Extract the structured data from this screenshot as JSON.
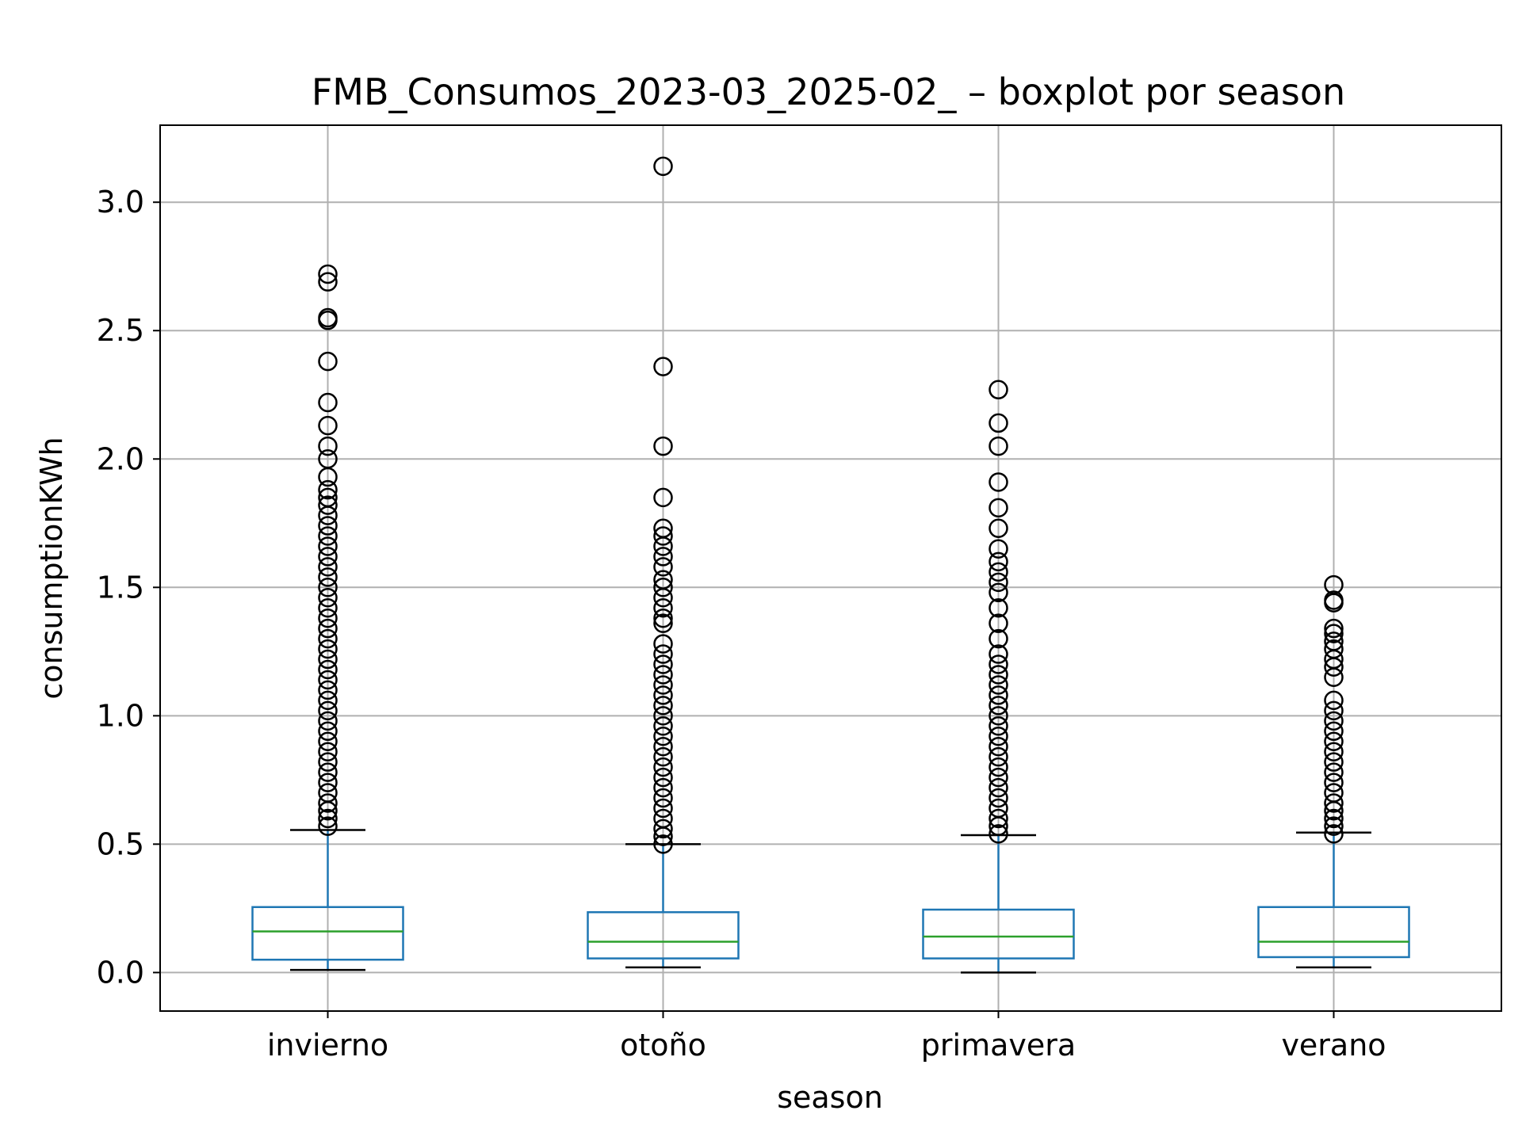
{
  "chart_data": {
    "type": "boxplot",
    "title": "FMB_Consumos_2023-03_2025-02_ – boxplot por season",
    "xlabel": "season",
    "ylabel": "consumptionKWh",
    "categories": [
      "invierno",
      "otoño",
      "primavera",
      "verano"
    ],
    "ylim": [
      -0.15,
      3.3
    ],
    "yticks": [
      0.0,
      0.5,
      1.0,
      1.5,
      2.0,
      2.5,
      3.0
    ],
    "ytick_labels": [
      "0.0",
      "0.5",
      "1.0",
      "1.5",
      "2.0",
      "2.5",
      "3.0"
    ],
    "grid": true,
    "boxes": [
      {
        "category": "invierno",
        "whisker_low": 0.01,
        "q1": 0.05,
        "median": 0.16,
        "q3": 0.255,
        "whisker_high": 0.555,
        "outliers": [
          0.57,
          0.6,
          0.63,
          0.66,
          0.7,
          0.74,
          0.78,
          0.82,
          0.86,
          0.9,
          0.94,
          0.98,
          1.02,
          1.06,
          1.1,
          1.14,
          1.18,
          1.22,
          1.26,
          1.3,
          1.34,
          1.38,
          1.42,
          1.46,
          1.5,
          1.54,
          1.58,
          1.62,
          1.66,
          1.7,
          1.74,
          1.78,
          1.82,
          1.85,
          1.88,
          1.93,
          2.0,
          2.05,
          2.13,
          2.22,
          2.38,
          2.54,
          2.55,
          2.69,
          2.72
        ]
      },
      {
        "category": "otoño",
        "whisker_low": 0.02,
        "q1": 0.055,
        "median": 0.12,
        "q3": 0.235,
        "whisker_high": 0.5,
        "outliers": [
          0.5,
          0.53,
          0.56,
          0.6,
          0.64,
          0.68,
          0.72,
          0.76,
          0.8,
          0.84,
          0.88,
          0.92,
          0.96,
          1.0,
          1.04,
          1.08,
          1.12,
          1.16,
          1.2,
          1.24,
          1.28,
          1.36,
          1.38,
          1.42,
          1.46,
          1.5,
          1.53,
          1.58,
          1.62,
          1.66,
          1.7,
          1.73,
          1.85,
          2.05,
          2.36,
          3.14
        ]
      },
      {
        "category": "primavera",
        "whisker_low": 0.0,
        "q1": 0.055,
        "median": 0.14,
        "q3": 0.245,
        "whisker_high": 0.535,
        "outliers": [
          0.54,
          0.57,
          0.6,
          0.64,
          0.68,
          0.72,
          0.76,
          0.8,
          0.84,
          0.88,
          0.92,
          0.96,
          1.0,
          1.04,
          1.08,
          1.12,
          1.16,
          1.2,
          1.24,
          1.3,
          1.36,
          1.42,
          1.48,
          1.52,
          1.56,
          1.6,
          1.65,
          1.73,
          1.81,
          1.91,
          2.05,
          2.14,
          2.27
        ]
      },
      {
        "category": "verano",
        "whisker_low": 0.02,
        "q1": 0.06,
        "median": 0.12,
        "q3": 0.255,
        "whisker_high": 0.545,
        "outliers": [
          0.54,
          0.57,
          0.6,
          0.63,
          0.66,
          0.7,
          0.74,
          0.78,
          0.82,
          0.86,
          0.9,
          0.94,
          0.98,
          1.02,
          1.06,
          1.15,
          1.19,
          1.22,
          1.26,
          1.29,
          1.32,
          1.34,
          1.44,
          1.45,
          1.51
        ]
      }
    ],
    "colors": {
      "box": "#1f77b4",
      "median": "#2ca02c",
      "whisker_cap": "#000000",
      "outlier": "#000000",
      "grid": "#b0b0b0",
      "axes": "#000000"
    }
  }
}
